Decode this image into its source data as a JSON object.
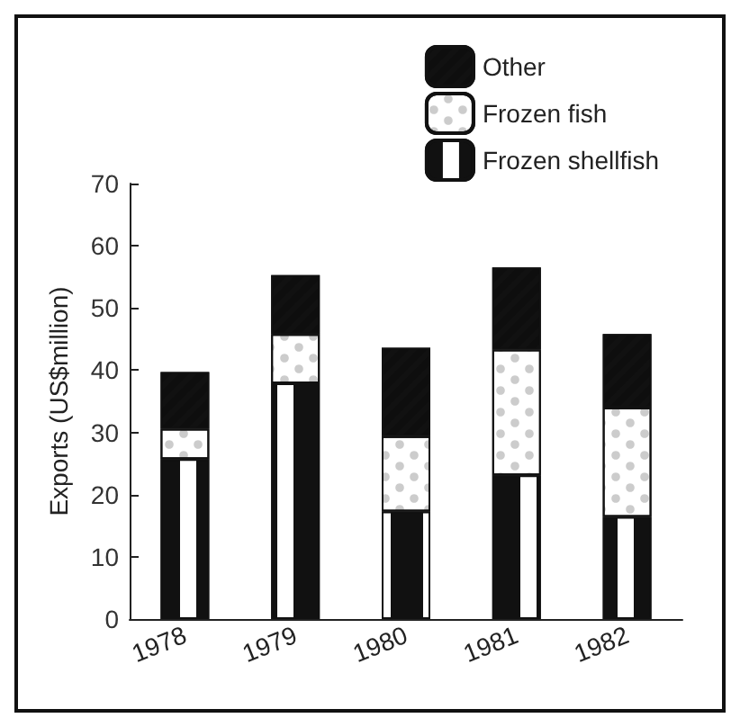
{
  "chart_data": {
    "type": "bar",
    "stacked": true,
    "ylabel": "Exports (US$million)",
    "categories": [
      "1978",
      "1979",
      "1980",
      "1981",
      "1982"
    ],
    "series": [
      {
        "name": "Frozen shellfish",
        "color": "#111111",
        "values": [
          25.7,
          37.9,
          17.3,
          23.1,
          16.4
        ]
      },
      {
        "name": "Frozen fish",
        "color": "#ffffff",
        "values": [
          4.9,
          7.9,
          12.1,
          20.2,
          17.6
        ]
      },
      {
        "name": "Other",
        "color": "#111111",
        "values": [
          9.1,
          9.5,
          14.2,
          13.2,
          11.8
        ]
      }
    ],
    "ylim": [
      0,
      70
    ],
    "yticks": [
      0,
      10,
      20,
      30,
      40,
      50,
      60,
      70
    ],
    "grid": false,
    "legend": "top right"
  }
}
